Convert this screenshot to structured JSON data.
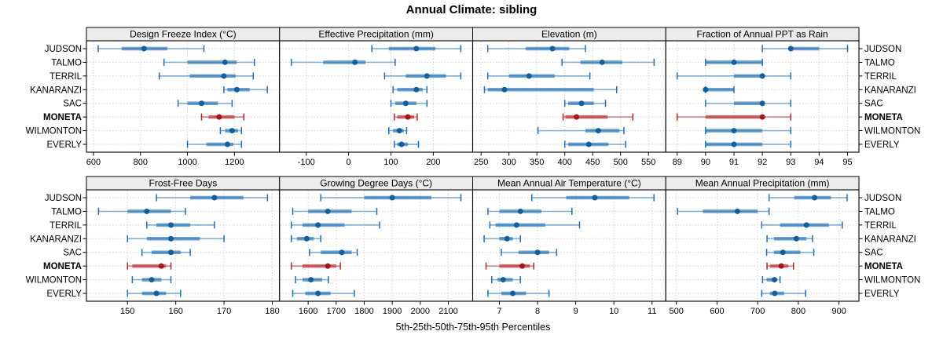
{
  "title": "Annual Climate: sibling",
  "axis_caption": "5th-25th-50th-75th-95th Percentiles",
  "sites": [
    "JUDSON",
    "TALMO",
    "TERRIL",
    "KANARANZI",
    "SAC",
    "MONETA",
    "WILMONTON",
    "EVERLY"
  ],
  "highlight_site": "MONETA",
  "percentile_labels": [
    "5th",
    "25th",
    "50th",
    "75th",
    "95th"
  ],
  "colors": {
    "blue": "#1f6fb2",
    "blue_dot": "#155e9e",
    "red": "#b2262b",
    "red_dot": "#9c181d",
    "strip_bg": "#ececec",
    "panel_bg": "#ffffff",
    "border": "#000000",
    "grid": "#c4c4c4"
  },
  "chart_data": [
    {
      "type": "dotplot-percentiles",
      "row": 0,
      "col": 0,
      "title": "Design Freeze Index (°C)",
      "ticks": [
        600,
        800,
        1000,
        1200
      ],
      "xlim": [
        570,
        1392
      ],
      "series": {
        "JUDSON": [
          620,
          720,
          815,
          915,
          1070
        ],
        "TALMO": [
          900,
          1000,
          1160,
          1210,
          1285
        ],
        "TERRIL": [
          880,
          1010,
          1155,
          1205,
          1280
        ],
        "KANARANZI": [
          1155,
          1170,
          1210,
          1265,
          1340
        ],
        "SAC": [
          960,
          1000,
          1060,
          1130,
          1190
        ],
        "MONETA": [
          1060,
          1090,
          1135,
          1200,
          1240
        ],
        "WILMONTON": [
          1140,
          1160,
          1190,
          1215,
          1230
        ],
        "EVERLY": [
          1000,
          1080,
          1170,
          1195,
          1230
        ]
      }
    },
    {
      "type": "dotplot-percentiles",
      "row": 0,
      "col": 1,
      "title": "Effective Precipitation (mm)",
      "ticks": [
        -100,
        0,
        100,
        200
      ],
      "xlim": [
        -163,
        293
      ],
      "series": {
        "JUDSON": [
          55,
          95,
          160,
          205,
          265
        ],
        "TALMO": [
          -135,
          -60,
          15,
          40,
          110
        ],
        "TERRIL": [
          85,
          135,
          185,
          230,
          265
        ],
        "KANARANZI": [
          105,
          115,
          160,
          175,
          185
        ],
        "SAC": [
          100,
          110,
          135,
          160,
          185
        ],
        "MONETA": [
          108,
          115,
          140,
          155,
          162
        ],
        "WILMONTON": [
          95,
          105,
          120,
          130,
          137
        ],
        "EVERLY": [
          108,
          115,
          125,
          140,
          165
        ]
      }
    },
    {
      "type": "dotplot-percentiles",
      "row": 0,
      "col": 2,
      "title": "Elevation (m)",
      "ticks": [
        250,
        300,
        350,
        400,
        450,
        500,
        550
      ],
      "xlim": [
        235,
        581
      ],
      "series": {
        "JUDSON": [
          262,
          330,
          378,
          408,
          437
        ],
        "TALMO": [
          395,
          428,
          467,
          503,
          560
        ],
        "TERRIL": [
          262,
          300,
          336,
          382,
          445
        ],
        "KANARANZI": [
          256,
          262,
          292,
          452,
          493
        ],
        "SAC": [
          400,
          406,
          430,
          452,
          473
        ],
        "MONETA": [
          397,
          401,
          421,
          477,
          522
        ],
        "WILMONTON": [
          352,
          437,
          460,
          498,
          506
        ],
        "EVERLY": [
          400,
          406,
          443,
          478,
          509
        ]
      }
    },
    {
      "type": "dotplot-percentiles",
      "row": 0,
      "col": 3,
      "title": "Fraction of Annual PPT as Rain",
      "ticks": [
        89,
        90,
        91,
        92,
        93,
        94,
        95
      ],
      "xlim": [
        88.6,
        95.4
      ],
      "series": {
        "JUDSON": [
          92,
          93,
          93,
          94,
          95
        ],
        "TALMO": [
          90,
          90,
          91,
          92,
          92
        ],
        "TERRIL": [
          89,
          91,
          92,
          92,
          93
        ],
        "KANARANZI": [
          90,
          90,
          90,
          91,
          91
        ],
        "SAC": [
          90,
          91,
          92,
          92,
          93
        ],
        "MONETA": [
          89,
          90,
          92,
          92,
          93
        ],
        "WILMONTON": [
          90,
          90,
          91,
          92,
          93
        ],
        "EVERLY": [
          90,
          90,
          91,
          92,
          93
        ]
      }
    },
    {
      "type": "dotplot-percentiles",
      "row": 1,
      "col": 0,
      "title": "Frost-Free Days",
      "ticks": [
        150,
        160,
        170,
        180
      ],
      "xlim": [
        141.5,
        181.5
      ],
      "series": {
        "JUDSON": [
          156,
          163,
          168,
          174,
          179
        ],
        "TALMO": [
          144,
          150,
          154,
          159,
          162
        ],
        "TERRIL": [
          154,
          156,
          159,
          163,
          168
        ],
        "KANARANZI": [
          150,
          154,
          159,
          165,
          170
        ],
        "SAC": [
          153,
          155,
          159,
          161,
          163
        ],
        "MONETA": [
          150,
          151,
          157,
          158,
          159
        ],
        "WILMONTON": [
          151,
          153,
          155,
          157,
          159
        ],
        "EVERLY": [
          150,
          153,
          156,
          158,
          161
        ]
      }
    },
    {
      "type": "dotplot-percentiles",
      "row": 1,
      "col": 1,
      "title": "Growing Degree Days (°C)",
      "ticks": [
        1600,
        1700,
        1800,
        1900,
        2000,
        2100
      ],
      "xlim": [
        1498,
        2187
      ],
      "series": {
        "JUDSON": [
          1645,
          1800,
          1900,
          2040,
          2145
        ],
        "TALMO": [
          1545,
          1600,
          1670,
          1755,
          1845
        ],
        "TERRIL": [
          1540,
          1580,
          1635,
          1730,
          1855
        ],
        "KANARANZI": [
          1540,
          1560,
          1595,
          1620,
          1645
        ],
        "SAC": [
          1605,
          1645,
          1720,
          1755,
          1775
        ],
        "MONETA": [
          1540,
          1580,
          1670,
          1700,
          1715
        ],
        "WILMONTON": [
          1555,
          1580,
          1610,
          1650,
          1672
        ],
        "EVERLY": [
          1545,
          1590,
          1635,
          1680,
          1765
        ]
      }
    },
    {
      "type": "dotplot-percentiles",
      "row": 1,
      "col": 2,
      "title": "Mean Annual Air Temperature (°C)",
      "ticks": [
        7,
        8,
        9,
        10,
        11
      ],
      "xlim": [
        6.3,
        11.36
      ],
      "series": {
        "JUDSON": [
          7.85,
          8.75,
          9.5,
          10.4,
          11.05
        ],
        "TALMO": [
          6.7,
          7.0,
          7.55,
          8.1,
          8.9
        ],
        "TERRIL": [
          6.75,
          6.9,
          7.45,
          8.2,
          9.1
        ],
        "KANARANZI": [
          6.6,
          7.0,
          7.2,
          7.35,
          7.55
        ],
        "SAC": [
          7.05,
          7.5,
          8.0,
          8.3,
          8.5
        ],
        "MONETA": [
          6.65,
          7.0,
          7.6,
          7.8,
          7.9
        ],
        "WILMONTON": [
          6.8,
          6.95,
          7.1,
          7.35,
          7.55
        ],
        "EVERLY": [
          6.7,
          7.05,
          7.35,
          7.7,
          8.3
        ]
      }
    },
    {
      "type": "dotplot-percentiles",
      "row": 1,
      "col": 3,
      "title": "Mean Annual Precipitation (mm)",
      "ticks": [
        500,
        600,
        700,
        800,
        900
      ],
      "xlim": [
        474,
        949
      ],
      "series": {
        "JUDSON": [
          728,
          790,
          840,
          880,
          920
        ],
        "TALMO": [
          503,
          565,
          650,
          700,
          728
        ],
        "TERRIL": [
          710,
          755,
          820,
          875,
          908
        ],
        "KANARANZI": [
          723,
          740,
          795,
          820,
          835
        ],
        "SAC": [
          722,
          740,
          762,
          805,
          838
        ],
        "MONETA": [
          723,
          730,
          758,
          775,
          788
        ],
        "WILMONTON": [
          712,
          722,
          741,
          748,
          755
        ],
        "EVERLY": [
          710,
          730,
          742,
          765,
          818
        ]
      }
    }
  ]
}
